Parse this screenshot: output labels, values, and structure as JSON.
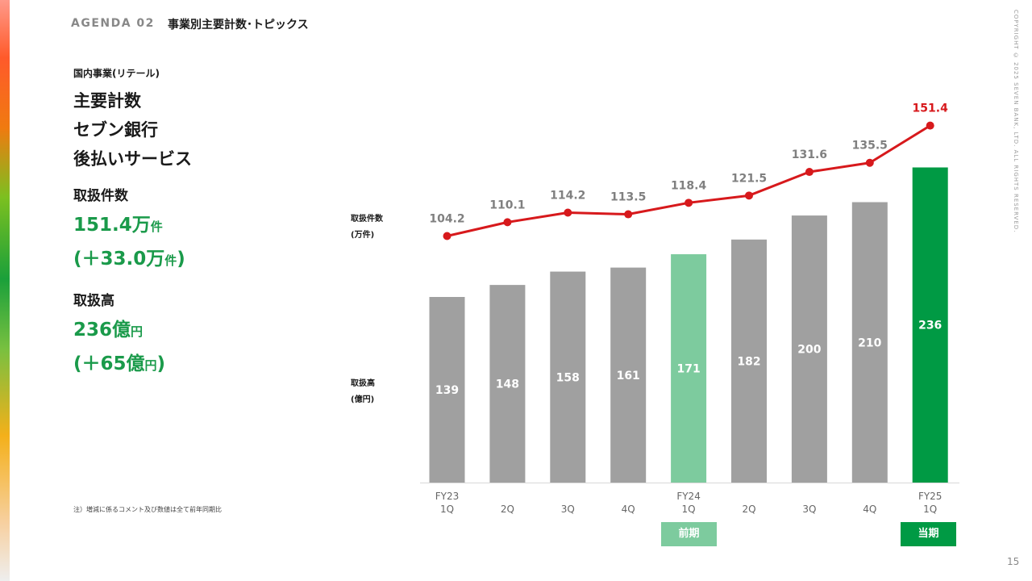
{
  "header": {
    "agenda": "AGENDA 02",
    "title": "事業別主要計数･トピックス"
  },
  "copyright": "COPYRIGHT © 2025 SEVEN BANK, LTD. ALL RIGHTS RESERVED.",
  "left": {
    "subtitle": "国内事業(リテール)",
    "title_lines": [
      "主要計数",
      "セブン銀行",
      "後払いサービス"
    ],
    "count_label": "取扱件数",
    "count_value": "151.4万",
    "count_value_unit": "件",
    "count_change": "(＋33.0万",
    "count_change_unit": "件",
    "count_change_close": ")",
    "amount_label": "取扱高",
    "amount_value": "236億",
    "amount_value_unit": "円",
    "amount_change": "(＋65億",
    "amount_change_unit": "円",
    "amount_change_close": ")"
  },
  "note": "注）増減に係るコメント及び数値は全て前年同期比",
  "page_number": "15",
  "legend": {
    "line_label_1": "取扱件数",
    "line_label_2": "(万件)",
    "bar_label_1": "取扱高",
    "bar_label_2": "(億円)"
  },
  "periods": {
    "previous": "前期",
    "current": "当期"
  },
  "colors": {
    "accent_green": "#1a9a4a",
    "bar_gray": "#a0a0a0",
    "bar_light_green": "#7dcb9e",
    "bar_current": "#009a44",
    "line_red": "#d7191c",
    "label_gray": "#808080"
  },
  "chart_data": {
    "type": "bar",
    "categories": [
      "FY23 1Q",
      "2Q",
      "3Q",
      "4Q",
      "FY24 1Q",
      "2Q",
      "3Q",
      "4Q",
      "FY25 1Q"
    ],
    "x_tick_labels": [
      [
        "FY23",
        "1Q"
      ],
      [
        "",
        "2Q"
      ],
      [
        "",
        "3Q"
      ],
      [
        "",
        "4Q"
      ],
      [
        "FY24",
        "1Q"
      ],
      [
        "",
        "2Q"
      ],
      [
        "",
        "3Q"
      ],
      [
        "",
        "4Q"
      ],
      [
        "FY25",
        "1Q"
      ]
    ],
    "series": [
      {
        "name": "取扱高",
        "type": "bar",
        "unit": "億円",
        "values": [
          139,
          148,
          158,
          161,
          171,
          182,
          200,
          210,
          236
        ],
        "highlight": {
          "4": "previous",
          "8": "current"
        }
      },
      {
        "name": "取扱件数",
        "type": "line",
        "unit": "万件",
        "values": [
          104.2,
          110.1,
          114.2,
          113.5,
          118.4,
          121.5,
          131.6,
          135.5,
          151.4
        ]
      }
    ],
    "grid": false,
    "legend": "left"
  }
}
